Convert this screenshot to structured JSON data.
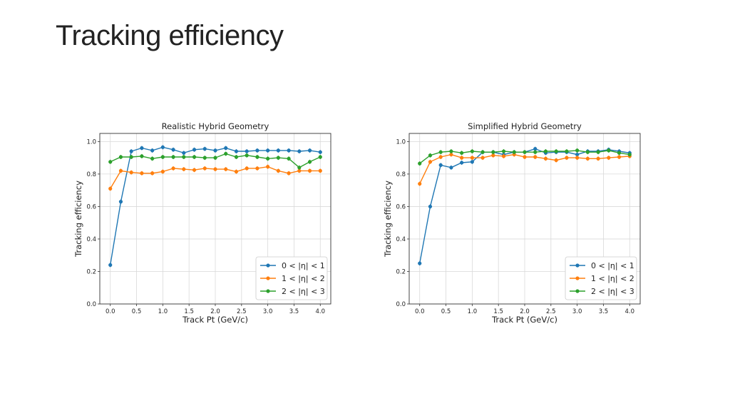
{
  "slide": {
    "title": "Tracking efficiency"
  },
  "chart_data": [
    {
      "type": "line",
      "title": "Realistic Hybrid Geometry",
      "xlabel": "Track Pt (GeV/c)",
      "ylabel": "Tracking efficiency",
      "xlim": [
        -0.2,
        4.2
      ],
      "ylim": [
        0.0,
        1.05
      ],
      "xticks": [
        "0.0",
        "0.5",
        "1.0",
        "1.5",
        "2.0",
        "2.5",
        "3.0",
        "3.5",
        "4.0"
      ],
      "yticks": [
        "0.0",
        "0.2",
        "0.4",
        "0.6",
        "0.8",
        "1.0"
      ],
      "grid": true,
      "legend_position": "lower-right",
      "x": [
        0.0,
        0.2,
        0.4,
        0.6,
        0.8,
        1.0,
        1.2,
        1.4,
        1.6,
        1.8,
        2.0,
        2.2,
        2.4,
        2.6,
        2.8,
        3.0,
        3.2,
        3.4,
        3.6,
        3.8,
        4.0
      ],
      "series": [
        {
          "name": "0 < |η| < 1",
          "color": "#1f77b4",
          "values": [
            0.24,
            0.63,
            0.94,
            0.96,
            0.945,
            0.965,
            0.95,
            0.93,
            0.95,
            0.955,
            0.945,
            0.96,
            0.94,
            0.94,
            0.945,
            0.945,
            0.945,
            0.945,
            0.94,
            0.945,
            0.935
          ]
        },
        {
          "name": "1 < |η| < 2",
          "color": "#ff7f0e",
          "values": [
            0.71,
            0.82,
            0.81,
            0.805,
            0.805,
            0.815,
            0.835,
            0.83,
            0.825,
            0.835,
            0.83,
            0.83,
            0.815,
            0.835,
            0.835,
            0.845,
            0.82,
            0.805,
            0.82,
            0.82,
            0.82
          ]
        },
        {
          "name": "2 < |η| < 3",
          "color": "#2ca02c",
          "values": [
            0.875,
            0.905,
            0.905,
            0.91,
            0.895,
            0.905,
            0.905,
            0.905,
            0.905,
            0.9,
            0.9,
            0.925,
            0.905,
            0.915,
            0.905,
            0.895,
            0.9,
            0.895,
            0.84,
            0.875,
            0.905
          ]
        }
      ]
    },
    {
      "type": "line",
      "title": "Simplified Hybrid Geometry",
      "xlabel": "Track Pt (GeV/c)",
      "ylabel": "Tracking efficiency",
      "xlim": [
        -0.2,
        4.2
      ],
      "ylim": [
        0.0,
        1.05
      ],
      "xticks": [
        "0.0",
        "0.5",
        "1.0",
        "1.5",
        "2.0",
        "2.5",
        "3.0",
        "3.5",
        "4.0"
      ],
      "yticks": [
        "0.0",
        "0.2",
        "0.4",
        "0.6",
        "0.8",
        "1.0"
      ],
      "grid": true,
      "legend_position": "lower-right",
      "x": [
        0.0,
        0.2,
        0.4,
        0.6,
        0.8,
        1.0,
        1.2,
        1.4,
        1.6,
        1.8,
        2.0,
        2.2,
        2.4,
        2.6,
        2.8,
        3.0,
        3.2,
        3.4,
        3.6,
        3.8,
        4.0
      ],
      "series": [
        {
          "name": "0 < |η| < 1",
          "color": "#1f77b4",
          "values": [
            0.25,
            0.6,
            0.855,
            0.84,
            0.87,
            0.875,
            0.935,
            0.935,
            0.92,
            0.935,
            0.935,
            0.955,
            0.93,
            0.935,
            0.935,
            0.92,
            0.94,
            0.94,
            0.95,
            0.94,
            0.93
          ]
        },
        {
          "name": "1 < |η| < 2",
          "color": "#ff7f0e",
          "values": [
            0.74,
            0.875,
            0.905,
            0.92,
            0.9,
            0.9,
            0.9,
            0.915,
            0.91,
            0.92,
            0.905,
            0.905,
            0.895,
            0.885,
            0.9,
            0.9,
            0.895,
            0.895,
            0.9,
            0.905,
            0.91
          ]
        },
        {
          "name": "2 < |η| < 3",
          "color": "#2ca02c",
          "values": [
            0.865,
            0.915,
            0.935,
            0.94,
            0.93,
            0.94,
            0.935,
            0.935,
            0.94,
            0.935,
            0.935,
            0.935,
            0.94,
            0.94,
            0.94,
            0.945,
            0.935,
            0.935,
            0.945,
            0.93,
            0.92
          ]
        }
      ]
    }
  ]
}
